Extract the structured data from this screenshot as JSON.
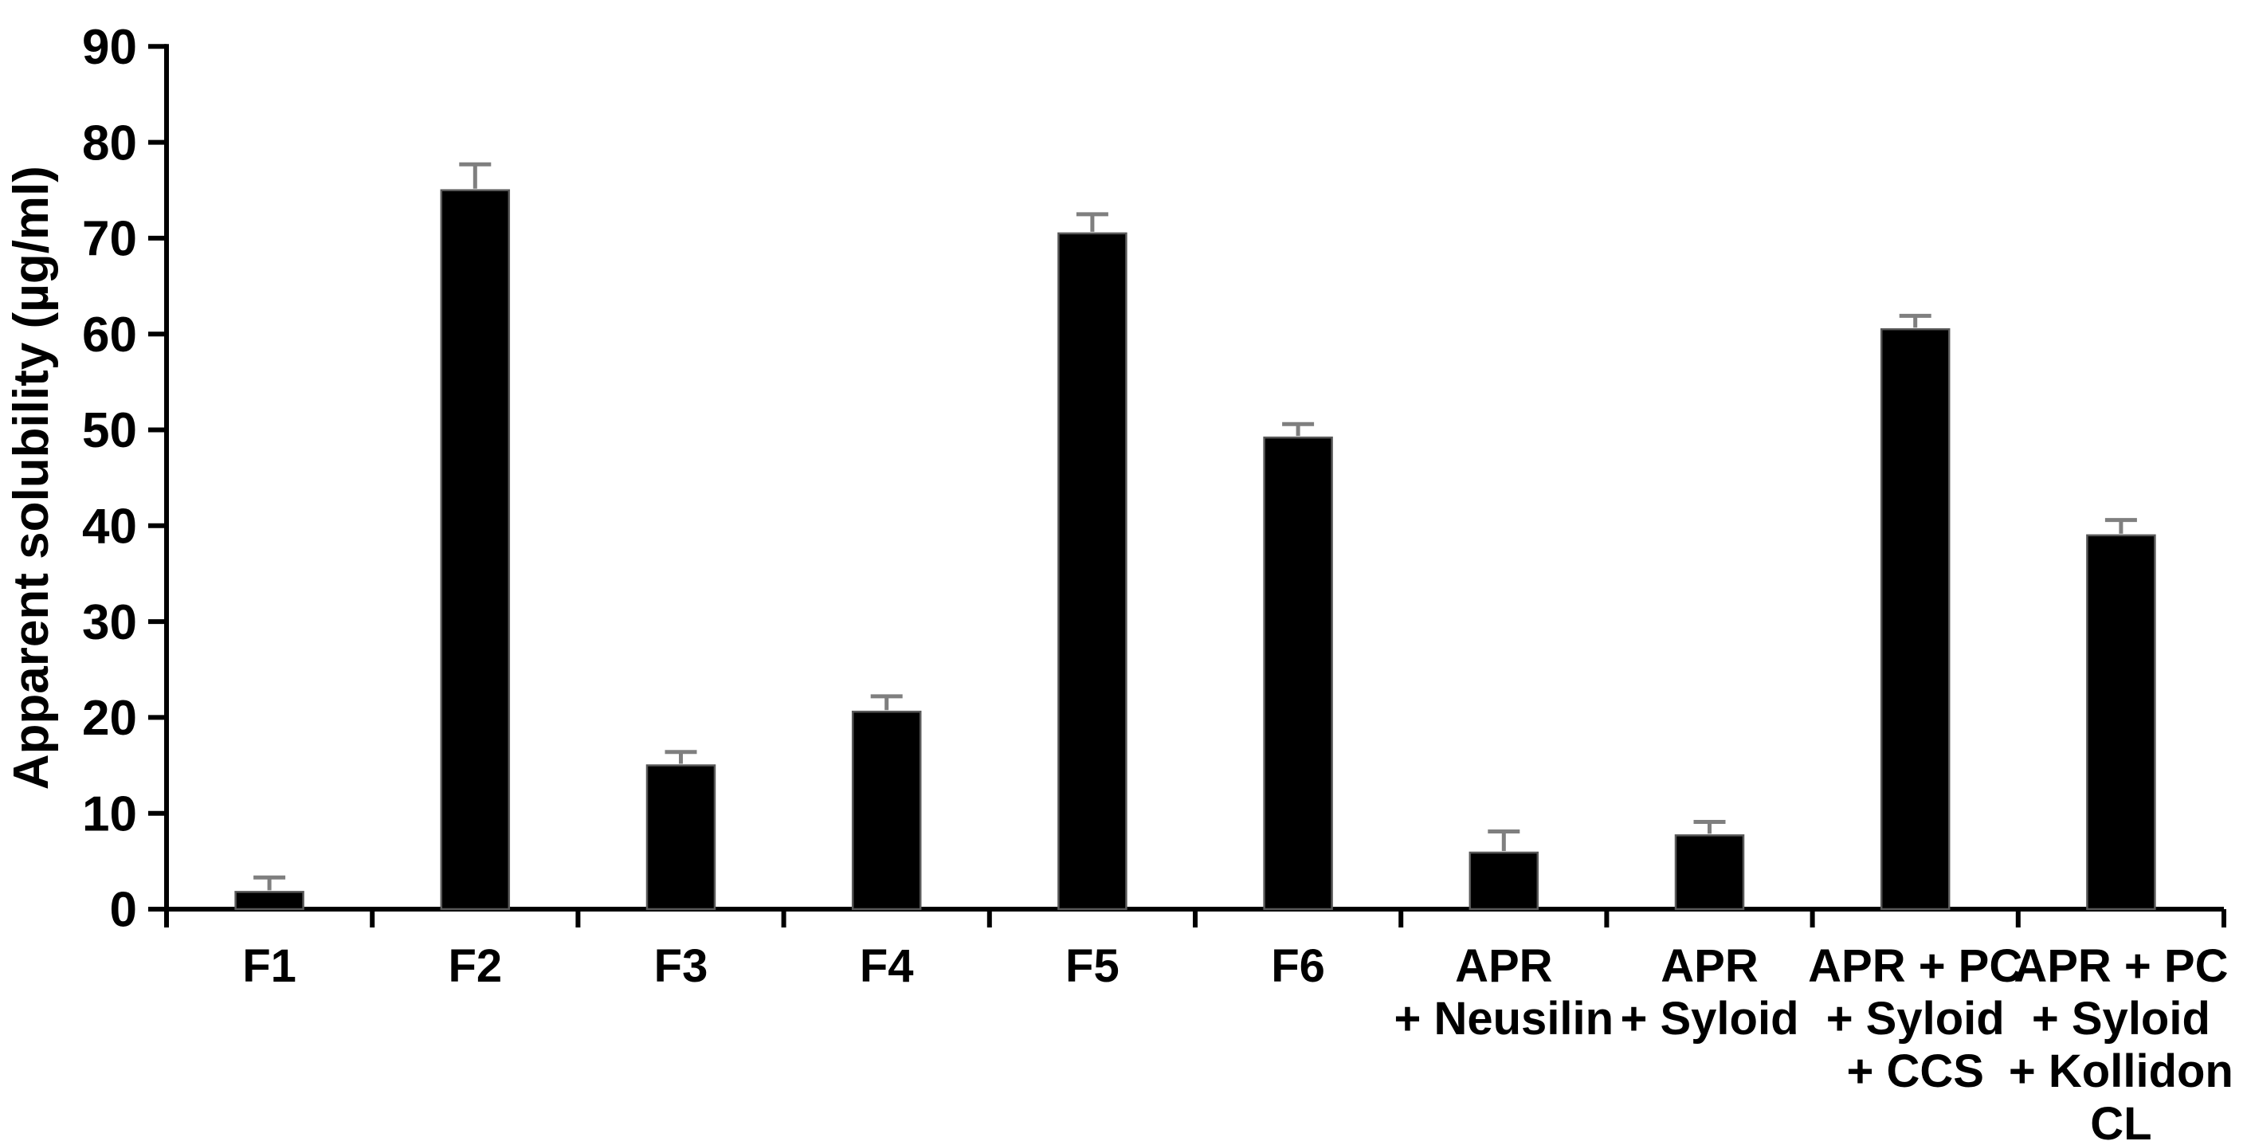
{
  "figure": {
    "background": "#ffffff",
    "description": "Bar chart of apparent solubility for formulations F1-F6 and physical mixtures"
  },
  "chart_data": {
    "type": "bar",
    "title": "",
    "xlabel": "",
    "ylabel": "Apparent solubility (µg/ml)",
    "ylim": [
      0,
      90
    ],
    "yticks": [
      0,
      10,
      20,
      30,
      40,
      50,
      60,
      70,
      80,
      90
    ],
    "grid": false,
    "legend": false,
    "categories": [
      "F1",
      "F2",
      "F3",
      "F4",
      "F5",
      "F6",
      "APR + Neusilin",
      "APR + Syloid",
      "APR + PC + Syloid + CCS",
      "APR + PC + Syloid + Kollidon CL"
    ],
    "category_label_lines": [
      [
        "F1"
      ],
      [
        "F2"
      ],
      [
        "F3"
      ],
      [
        "F4"
      ],
      [
        "F5"
      ],
      [
        "F6"
      ],
      [
        "APR",
        "+ Neusilin"
      ],
      [
        "APR",
        "+ Syloid"
      ],
      [
        "APR + PC",
        "+ Syloid",
        "+ CCS"
      ],
      [
        "APR + PC",
        "+ Syloid",
        "+ Kollidon",
        "CL"
      ]
    ],
    "values": [
      1.8,
      75.0,
      15.0,
      20.6,
      70.5,
      49.2,
      5.9,
      7.7,
      60.5,
      39.0
    ],
    "errors": [
      1.5,
      2.7,
      1.4,
      1.6,
      2.0,
      1.4,
      2.2,
      1.4,
      1.4,
      1.6
    ],
    "colors": {
      "bar_fill": "#000000",
      "bar_border": "#595959",
      "error_bar": "#7f7f7f",
      "axis": "#000000",
      "text": "#000000",
      "background": "#ffffff"
    }
  }
}
